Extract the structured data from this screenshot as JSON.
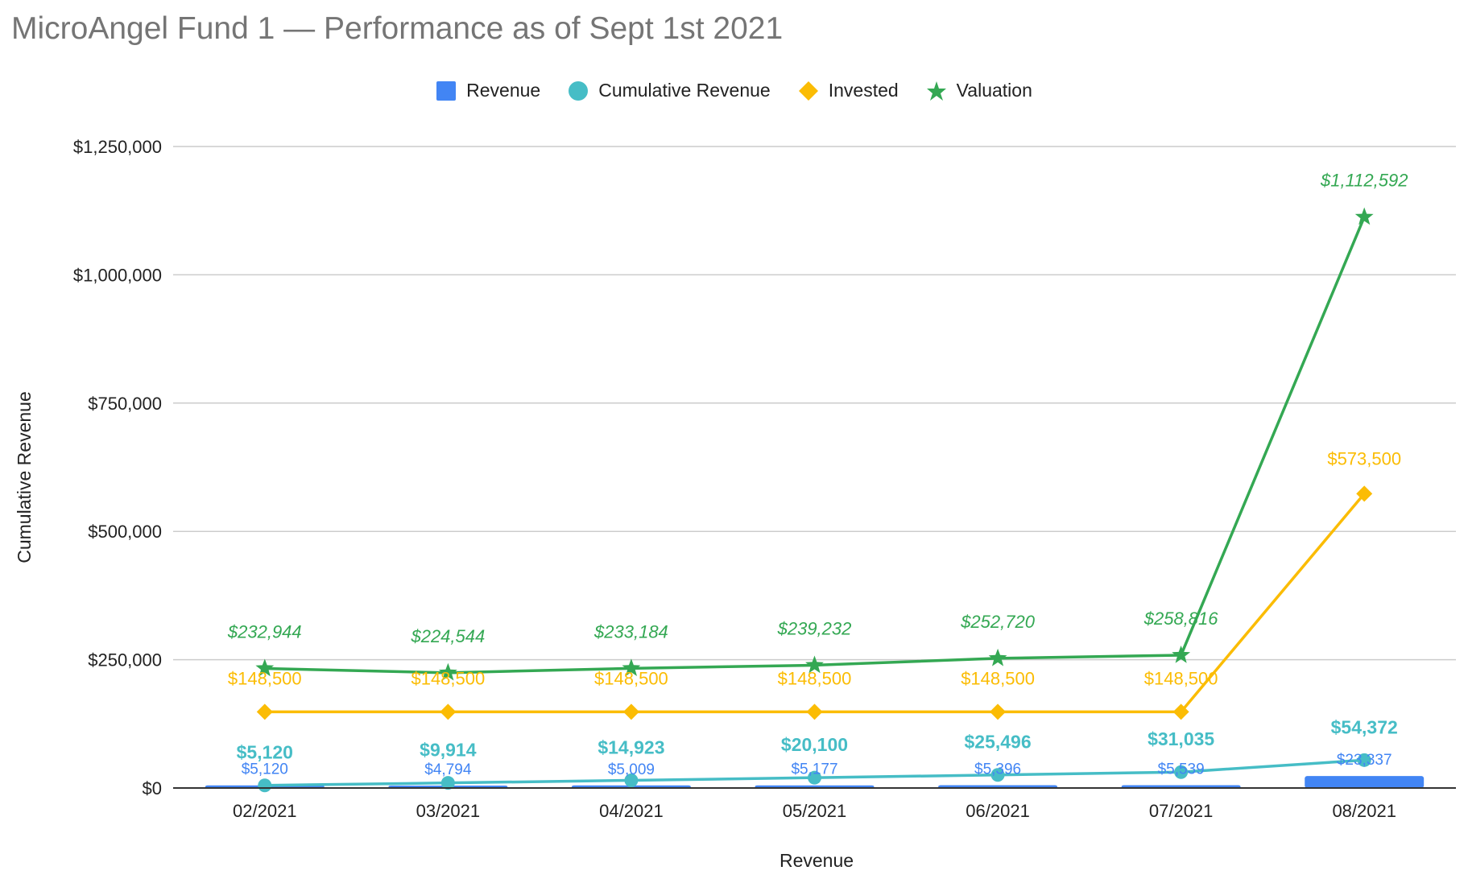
{
  "title": "MicroAngel Fund 1 — Performance as of Sept 1st 2021",
  "legend": [
    {
      "name": "Revenue",
      "color": "#4285f4",
      "symbol": "square"
    },
    {
      "name": "Cumulative Revenue",
      "color": "#46bdc6",
      "symbol": "circle"
    },
    {
      "name": "Invested",
      "color": "#fbbc04",
      "symbol": "diamond"
    },
    {
      "name": "Valuation",
      "color": "#34a853",
      "symbol": "star"
    }
  ],
  "chart_data": {
    "type": "line",
    "title": "MicroAngel Fund 1 — Performance as of Sept 1st 2021",
    "xlabel": "Revenue",
    "ylabel": "Cumulative Revenue",
    "ylim": [
      0,
      1250000
    ],
    "yticks": [
      "$0",
      "$250,000",
      "$500,000",
      "$750,000",
      "$1,000,000",
      "$1,250,000"
    ],
    "grid": true,
    "legend_position": "top",
    "categories": [
      "02/2021",
      "03/2021",
      "04/2021",
      "05/2021",
      "06/2021",
      "07/2021",
      "08/2021"
    ],
    "series": [
      {
        "name": "Revenue",
        "type": "bar",
        "color": "#4285f4",
        "values": [
          5120,
          4794,
          5009,
          5177,
          5396,
          5539,
          23337
        ],
        "labels": [
          "$5,120",
          "$4,794",
          "$5,009",
          "$5,177",
          "$5,396",
          "$5,539",
          "$23,337"
        ]
      },
      {
        "name": "Cumulative Revenue",
        "type": "line",
        "marker": "circle",
        "color": "#46bdc6",
        "values": [
          5120,
          9914,
          14923,
          20100,
          25496,
          31035,
          54372
        ],
        "labels": [
          "$5,120",
          "$9,914",
          "$14,923",
          "$20,100",
          "$25,496",
          "$31,035",
          "$54,372"
        ]
      },
      {
        "name": "Invested",
        "type": "line",
        "marker": "diamond",
        "color": "#fbbc04",
        "values": [
          148500,
          148500,
          148500,
          148500,
          148500,
          148500,
          573500
        ],
        "labels": [
          "$148,500",
          "$148,500",
          "$148,500",
          "$148,500",
          "$148,500",
          "$148,500",
          "$573,500"
        ]
      },
      {
        "name": "Valuation",
        "type": "line",
        "marker": "star",
        "color": "#34a853",
        "values": [
          232944,
          224544,
          233184,
          239232,
          252720,
          258816,
          1112592
        ],
        "labels": [
          "$232,944",
          "$224,544",
          "$233,184",
          "$239,232",
          "$252,720",
          "$258,816",
          "$1,112,592"
        ]
      }
    ]
  }
}
